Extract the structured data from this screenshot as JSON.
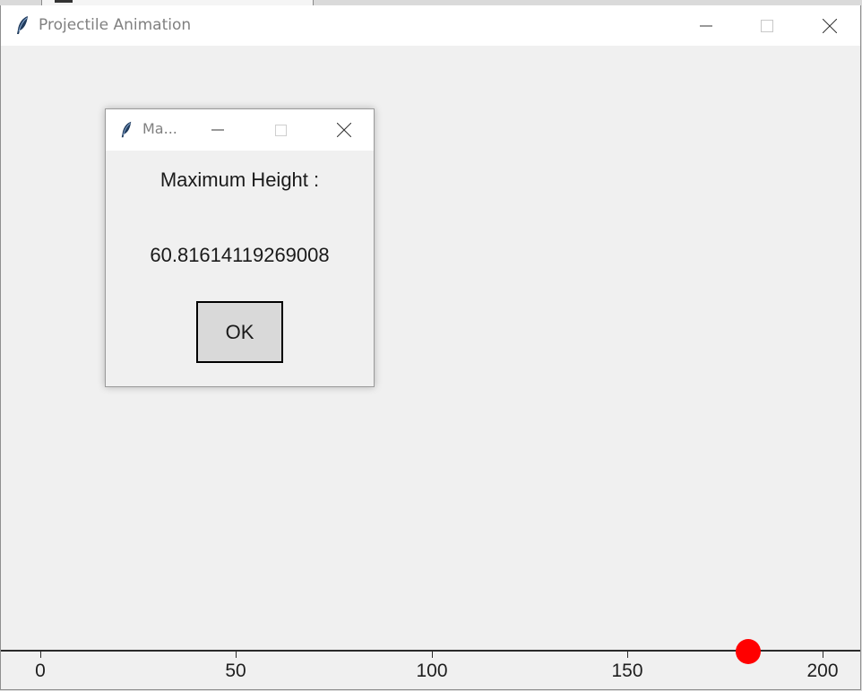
{
  "window": {
    "title": "Projectile Animation",
    "icon": "feather-icon"
  },
  "axis": {
    "ticks": [
      "0",
      "50",
      "100",
      "150",
      "200"
    ]
  },
  "projectile": {
    "color": "#ff0000",
    "x_value": 181
  },
  "dialog": {
    "title": "Ma...",
    "icon": "feather-icon",
    "heading": "Maximum Height :",
    "value": "60.81614119269008",
    "ok_label": "OK"
  },
  "colors": {
    "background": "#f0f0f0",
    "titlebar": "#ffffff",
    "ball": "#ff0000"
  }
}
